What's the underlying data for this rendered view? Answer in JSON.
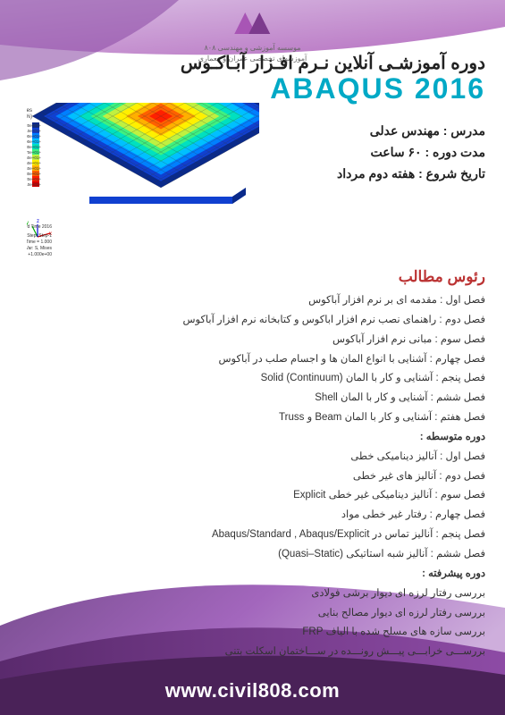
{
  "logo": {
    "text1": "موسسه آموزشی و مهندسی ۸۰۸",
    "text2": "آموزشهای تخصصی عمران و معماری",
    "color1": "#a855b5",
    "color2": "#7c3a8d"
  },
  "header": {
    "title": "دوره آموزشـی آنلاین نـرم افـزار آبـاکـوس",
    "subtitle": "ABAQUS 2016",
    "subtitle_color": "#00a9c6"
  },
  "info": {
    "instructor_label": "مدرس :",
    "instructor": "مهندس عدلی",
    "duration_label": "مدت دوره :",
    "duration": "۶۰ ساعت",
    "start_label": "تاریخ شروع :",
    "start": "هفته دوم مرداد"
  },
  "syllabus": {
    "heading": "رئوس مطالب",
    "heading_color": "#b33333",
    "items": [
      "فصل اول : مقدمه ای بر نرم افزار آباکوس",
      "فصل دوم : راهنمای نصب نرم افزار اباکوس و کتابخانه نرم افزار آباکوس",
      "فصل سوم : مبانی نرم افزار آباکوس",
      "فصل چهارم : آشنایی با انواع المان ها و اجسام صلب در آباکوس",
      "فصل پنجم : آشنایی و کار با المان Solid (Continuum)",
      "فصل ششم : آشنایی و کار با المان Shell",
      "فصل هفتم : آشنایی و کار با المان Beam و Truss"
    ],
    "level2": "دوره متوسطه :",
    "items2": [
      "فصل اول : آنالیز دینامیکی خطی",
      "فصل دوم : آنالیز های غیر خطی",
      "فصل سوم : آنالیز دینامیکی غیر خطی Explicit",
      "فصل چهارم : رفتار غیر خطی مواد",
      "فصل پنجم : آنالیز تماس در Abaqus/Standard , Abaqus/Explicit",
      "فصل ششم : آنالیز شبه استاتیکی (Quasi–Static)"
    ],
    "level3": "دوره پیشرفته :",
    "items3": [
      "بررسی رفتار لرزه ای دیوار برشی فولادی",
      "بررسی رفتار لرزه ای دیوار مصالح بنایی",
      "بررسی سازه های مسلح شده با الیاف FRP",
      "بررســـی خرابـــی پیـــش رونـــده در ســـاختمان اسکلت بتنی"
    ]
  },
  "footer": {
    "url": "www.civil808.com"
  },
  "bg": {
    "purple_light": "#c89fd8",
    "purple_mid": "#a855b5",
    "purple_dark": "#7c3a8d",
    "purple_deep": "#5a2a6d"
  },
  "sim": {
    "colors": [
      "#0a2a8a",
      "#1040d0",
      "#0080ff",
      "#00c0ff",
      "#00e0c0",
      "#40f080",
      "#c0f040",
      "#fff000",
      "#ffb000",
      "#ff6000",
      "#ff2000",
      "#d00000"
    ],
    "caption1": "S, Mises",
    "caption2": "(Avg: 75%)",
    "odb": "ODB: FRP-REV1-DYNAMIC-1-Force.odb   Abaqus/Explicit 6.14-3   ... Iran Standard Time 2016",
    "step": "Step: Step-1",
    "increment": "Increment   14416: Step Time =   1.000",
    "var": "Primary Var: S, Mises",
    "deform": "Deformed Var: U   Deformation Scale Factor: +1.000e+00"
  }
}
